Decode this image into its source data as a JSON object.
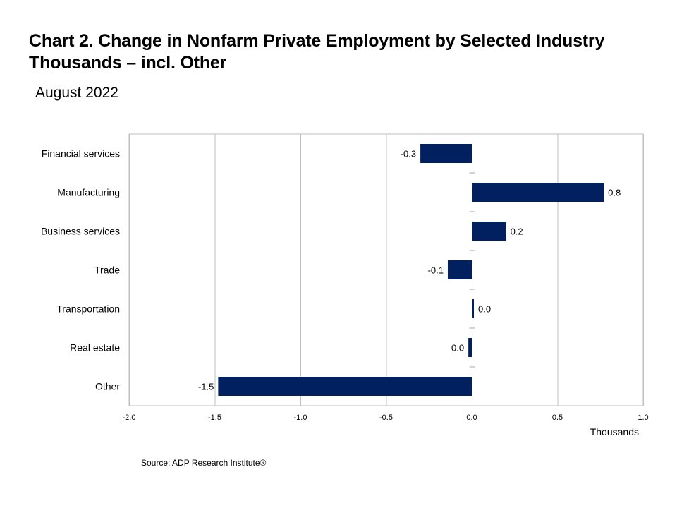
{
  "header": {
    "title_line1": "Chart 2. Change in Nonfarm Private Employment by Selected Industry",
    "title_line2": "Thousands – incl. Other",
    "subtitle": "August 2022"
  },
  "footer": {
    "source": "Source: ADP Research Institute®"
  },
  "colors": {
    "bar": "#002060",
    "grid": "#bfbfbf",
    "axis": "#a6a6a6"
  },
  "chart_data": {
    "type": "bar",
    "orientation": "horizontal",
    "categories": [
      "Financial services",
      "Manufacturing",
      "Business services",
      "Trade",
      "Transportation",
      "Real estate",
      "Other"
    ],
    "values": [
      -0.3,
      0.77,
      0.2,
      -0.14,
      0.01,
      -0.02,
      -1.48
    ],
    "data_labels": [
      "-0.3",
      "0.8",
      "0.2",
      "-0.1",
      "0.0",
      "0.0",
      "-1.5"
    ],
    "xlabel": "Thousands",
    "xlim": [
      -2.0,
      1.0
    ],
    "x_ticks": [
      -2.0,
      -1.5,
      -1.0,
      -0.5,
      0.0,
      0.5,
      1.0
    ],
    "x_tick_labels": [
      "-2.0",
      "-1.5",
      "-1.0",
      "-0.5",
      "0.0",
      "0.5",
      "1.0"
    ],
    "grid": "vertical",
    "legend": "none"
  }
}
